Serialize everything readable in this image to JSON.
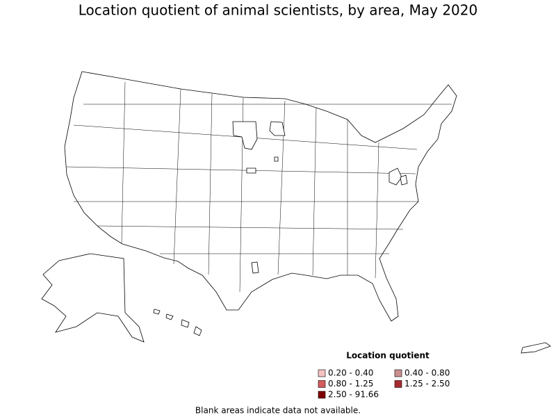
{
  "title": "Location quotient of animal scientists, by area, May 2020",
  "legend": {
    "title": "Location quotient",
    "items": [
      {
        "label": "0.20 - 0.40",
        "color": "#f4c2c2"
      },
      {
        "label": "0.40 - 0.80",
        "color": "#c99090"
      },
      {
        "label": "0.80 - 1.25",
        "color": "#d45c5c"
      },
      {
        "label": "1.25 - 2.50",
        "color": "#a82a2f"
      },
      {
        "label": "2.50 - 91.66",
        "color": "#7f0000"
      }
    ]
  },
  "footnote": "Blank areas indicate data not available."
}
